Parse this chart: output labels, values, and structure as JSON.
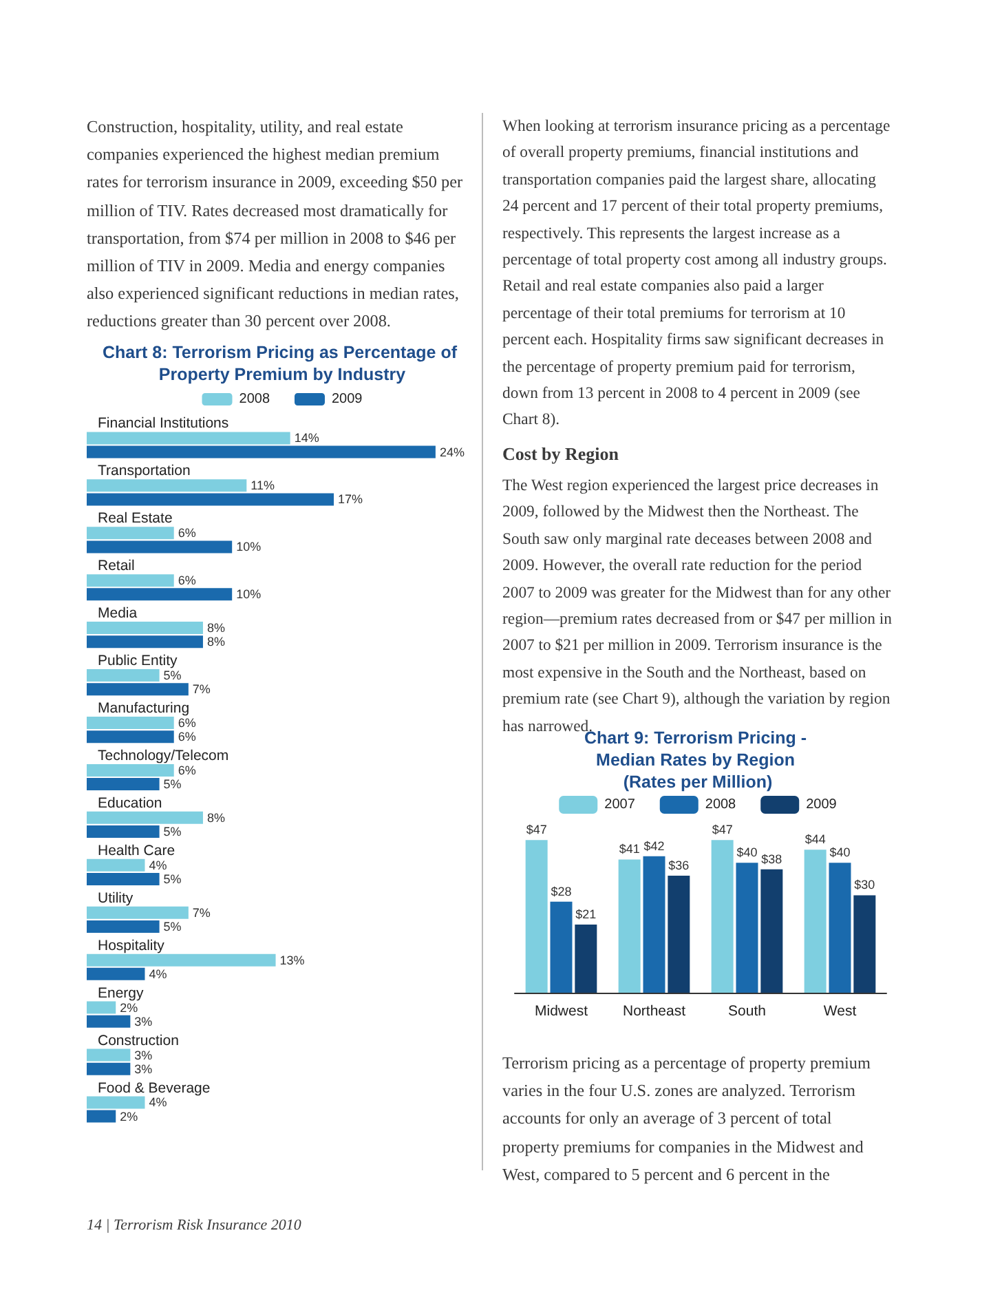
{
  "chart_data": [
    {
      "type": "bar",
      "orientation": "horizontal",
      "title": "Chart 8: Terrorism Pricing as Percentage of Property Premium by Industry",
      "categories": [
        "Financial Institutions",
        "Transportation",
        "Real Estate",
        "Retail",
        "Media",
        "Public Entity",
        "Manufacturing",
        "Technology/Telecom",
        "Education",
        "Health Care",
        "Utility",
        "Hospitality",
        "Energy",
        "Construction",
        "Food & Beverage"
      ],
      "series": [
        {
          "name": "2008",
          "color": "#7ecfe0",
          "values": [
            14,
            11,
            6,
            6,
            8,
            5,
            6,
            6,
            8,
            4,
            7,
            13,
            2,
            3,
            4
          ],
          "value_labels": [
            "14%",
            "11%",
            "6%",
            "6%",
            "8%",
            "5%",
            "6%",
            "6%",
            "8%",
            "4%",
            "7%",
            "13%",
            "2%",
            "3%",
            "4%"
          ]
        },
        {
          "name": "2009",
          "color": "#1a6aad",
          "values": [
            24,
            17,
            10,
            10,
            8,
            7,
            6,
            5,
            5,
            5,
            5,
            4,
            3,
            3,
            2
          ],
          "value_labels": [
            "24%",
            "17%",
            "10%",
            "10%",
            "8%",
            "7%",
            "6%",
            "5%",
            "5%",
            "5%",
            "5%",
            "4%",
            "3%",
            "3%",
            "2%"
          ]
        }
      ],
      "legend": "top",
      "grid": false,
      "tick_labels": "y",
      "annotations": [
        "Construction, hospitality, utility, and real estate companies experienced the highest median premium rates for terrorism insurance in 2009, exceeding $50 per million of TIV. Rates decreased most dramatically for transportation, from $74 per million in 2008 to $46 per million of TIV in 2009. Media and energy companies also experienced significant reductions in median rates, reductions greater than 30 percent over 2008.",
        "14 | Terrorism Risk Insurance 2010"
      ]
    },
    {
      "type": "bar",
      "title": "Chart 9: Terrorism Pricing - Median Rates by Region (Rates per Million)",
      "categories": [
        "Midwest",
        "Northeast",
        "South",
        "West"
      ],
      "series": [
        {
          "name": "2007",
          "color": "#7ecfe0",
          "values": [
            47,
            41,
            47,
            44
          ],
          "value_labels": [
            "$47",
            "$41",
            "$47",
            "$44"
          ]
        },
        {
          "name": "2008",
          "color": "#1a6aad",
          "values": [
            28,
            42,
            40,
            40
          ],
          "value_labels": [
            "$28",
            "$42",
            "$40",
            "$40"
          ]
        },
        {
          "name": "2009",
          "color": "#123f6e",
          "values": [
            21,
            36,
            38,
            30
          ],
          "value_labels": [
            "$21",
            "$36",
            "$38",
            "$30"
          ]
        }
      ],
      "legend": "top",
      "grid": false,
      "tick_labels": "x",
      "annotations": [
        "When looking at terrorism insurance pricing as a percentage of overall property premiums, financial institutions and transportation companies paid the largest share, allocating 24 percent and 17 percent of their total property premiums, respectively. This represents the largest increase as a percentage of total property cost among all industry groups. Retail and real estate companies also paid a larger percentage of their total premiums for terrorism at 10 percent each. Hospitality firms saw significant decreases in the percentage of property premium paid for terrorism, down from 13 percent in 2008 to 4 percent in 2009 (see Chart 8).",
        "Cost by Region",
        "The West region experienced the largest price decreases in 2009, followed by the Midwest then the Northeast. The South saw only marginal rate deceases between 2008 and 2009. However, the overall rate reduction for the period 2007 to 2009 was greater for the Midwest than for any other region—premium rates decreased from or $47 per million in 2007 to $21 per million in 2009. Terrorism insurance is the most expensive in the South and the Northeast, based on premium rate (see Chart 9), although the variation by region has narrowed.",
        "Terrorism pricing as a percentage of property premium varies in the four U.S. zones are analyzed. Terrorism accounts for only an average of 3 percent of total property premiums for companies in the Midwest and West, compared to 5 percent and 6 percent in the"
      ]
    }
  ]
}
